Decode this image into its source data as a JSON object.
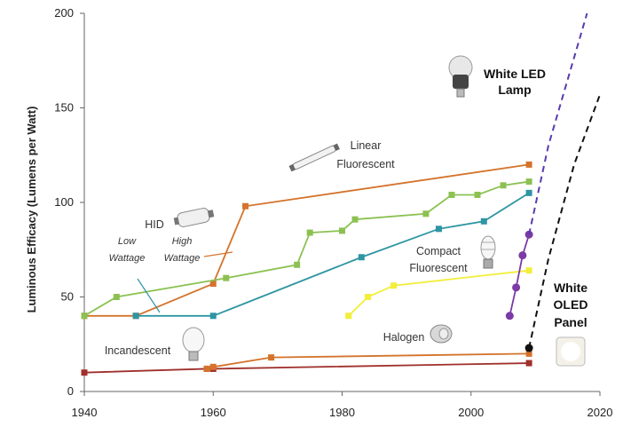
{
  "chart_data": {
    "type": "line",
    "title": "",
    "xlabel": "",
    "ylabel": "Luminous Efficacy (Lumens per Watt)",
    "xlim": [
      1940,
      2020
    ],
    "ylim": [
      0,
      200
    ],
    "x_ticks": [
      1940,
      1960,
      1980,
      2000,
      2020
    ],
    "y_ticks": [
      0,
      50,
      100,
      150,
      200
    ],
    "grid": false,
    "legend": "none",
    "series": [
      {
        "color": "#a0302c",
        "marker": "square",
        "points": [
          [
            1940,
            10
          ],
          [
            1959,
            12
          ],
          [
            1960,
            12
          ],
          [
            2009,
            15
          ]
        ]
      },
      {
        "color": "#d4732c",
        "marker": "square",
        "points": [
          [
            1959,
            12
          ],
          [
            1960,
            13
          ],
          [
            1969,
            18
          ],
          [
            2009,
            20
          ]
        ]
      },
      {
        "color": "#d4732c",
        "marker": "square",
        "points": [
          [
            1940,
            40
          ],
          [
            1948,
            40
          ],
          [
            1960,
            57
          ],
          [
            1965,
            98
          ],
          [
            2009,
            120
          ]
        ]
      },
      {
        "color": "#8cc152",
        "marker": "square",
        "points": [
          [
            1940,
            40
          ],
          [
            1945,
            50
          ],
          [
            1962,
            60
          ],
          [
            1973,
            67
          ],
          [
            1975,
            84
          ],
          [
            1980,
            85
          ],
          [
            1982,
            91
          ],
          [
            1993,
            94
          ],
          [
            1997,
            104
          ],
          [
            2001,
            104
          ],
          [
            2005,
            109
          ],
          [
            2009,
            111
          ]
        ]
      },
      {
        "color": "#2e95a3",
        "marker": "square",
        "points": [
          [
            1948,
            40
          ],
          [
            1960,
            40
          ],
          [
            1983,
            71
          ],
          [
            1995,
            86
          ],
          [
            2002,
            90
          ],
          [
            2009,
            105
          ]
        ]
      },
      {
        "color": "#f2ee3a",
        "marker": "square",
        "points": [
          [
            1981,
            40
          ],
          [
            1984,
            50
          ],
          [
            1988,
            56
          ],
          [
            2009,
            64
          ]
        ]
      },
      {
        "color": "#7b3aa5",
        "marker": "circle",
        "points": [
          [
            2006,
            40
          ],
          [
            2007,
            55
          ],
          [
            2008,
            72
          ],
          [
            2009,
            83
          ]
        ]
      },
      {
        "color": "#5a3ab0",
        "dashed": true,
        "points": [
          [
            2009,
            83
          ],
          [
            2012,
            130
          ],
          [
            2015,
            165
          ],
          [
            2018,
            200
          ]
        ]
      },
      {
        "color": "#111111",
        "dashed": true,
        "points": [
          [
            2009,
            23
          ],
          [
            2012,
            70
          ],
          [
            2016,
            120
          ],
          [
            2020,
            157
          ]
        ]
      },
      {
        "color": "#111111",
        "marker": "circle",
        "points": [
          [
            2009,
            23
          ]
        ]
      }
    ],
    "annotations": {
      "white_led": [
        "White LED",
        "Lamp"
      ],
      "linear_fl": [
        "Linear",
        "Fluorescent"
      ],
      "hid": "HID",
      "low": [
        "Low",
        "Wattage"
      ],
      "high": [
        "High",
        "Wattage"
      ],
      "compact_fl": [
        "Compact",
        "Fluorescent"
      ],
      "white_oled": [
        "White",
        "OLED",
        "Panel"
      ],
      "halogen": "Halogen",
      "incandescent": "Incandescent"
    }
  }
}
